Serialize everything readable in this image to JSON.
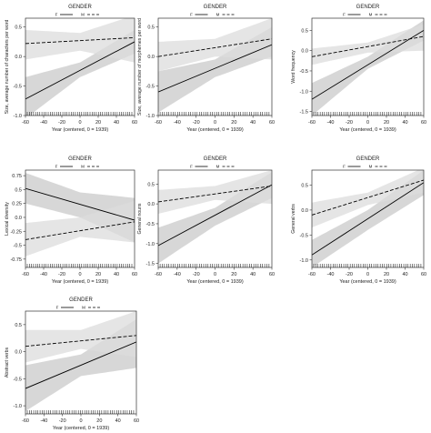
{
  "figure": {
    "legend_title": "GENDER",
    "legend_labels": [
      "F",
      "M"
    ],
    "xlabel": "Year (centered, 0 = 1939)"
  },
  "chart_data": [
    {
      "type": "line",
      "ylabel": "Size, average number of characters per word",
      "xlabel": "Year (centered, 0 = 1939)",
      "xlim": [
        -60,
        60
      ],
      "ylim": [
        -1.0,
        0.65
      ],
      "x_ticks": [
        -60,
        -40,
        -20,
        0,
        20,
        40,
        60
      ],
      "y_ticks": [
        -1.0,
        -0.5,
        0.0,
        0.5
      ],
      "series": [
        {
          "name": "F",
          "line": [
            [
              -60,
              -0.72
            ],
            [
              60,
              0.25
            ]
          ],
          "ci_low": [
            [
              -60,
              -1.05
            ],
            [
              0,
              -0.35
            ],
            [
              60,
              0.05
            ]
          ],
          "ci_high": [
            [
              -60,
              -0.35
            ],
            [
              0,
              -0.1
            ],
            [
              60,
              0.45
            ]
          ]
        },
        {
          "name": "M",
          "line": [
            [
              -60,
              0.22
            ],
            [
              60,
              0.32
            ]
          ],
          "ci_low": [
            [
              -60,
              -0.05
            ],
            [
              0,
              0.1
            ],
            [
              60,
              -0.1
            ]
          ],
          "ci_high": [
            [
              -60,
              0.45
            ],
            [
              0,
              0.4
            ],
            [
              60,
              0.7
            ]
          ]
        }
      ]
    },
    {
      "type": "line",
      "ylabel": "Size, average number of morphemes per word",
      "xlabel": "Year (centered, 0 = 1939)",
      "xlim": [
        -60,
        60
      ],
      "ylim": [
        -1.0,
        0.65
      ],
      "x_ticks": [
        -60,
        -40,
        -20,
        0,
        20,
        40,
        60
      ],
      "y_ticks": [
        -1.0,
        -0.5,
        0.0,
        0.5
      ],
      "series": [
        {
          "name": "F",
          "line": [
            [
              -60,
              -0.6
            ],
            [
              60,
              0.2
            ]
          ],
          "ci_low": [
            [
              -60,
              -0.95
            ],
            [
              0,
              -0.35
            ],
            [
              60,
              0.0
            ]
          ],
          "ci_high": [
            [
              -60,
              -0.25
            ],
            [
              0,
              -0.05
            ],
            [
              60,
              0.5
            ]
          ]
        },
        {
          "name": "M",
          "line": [
            [
              -60,
              0.0
            ],
            [
              60,
              0.3
            ]
          ],
          "ci_low": [
            [
              -60,
              -0.25
            ],
            [
              0,
              0.0
            ],
            [
              60,
              -0.05
            ]
          ],
          "ci_high": [
            [
              -60,
              0.25
            ],
            [
              0,
              0.3
            ],
            [
              60,
              0.65
            ]
          ]
        }
      ]
    },
    {
      "type": "line",
      "ylabel": "Word frequency",
      "xlabel": "Year (centered, 0 = 1939)",
      "xlim": [
        -60,
        60
      ],
      "ylim": [
        -1.6,
        0.8
      ],
      "x_ticks": [
        -60,
        -40,
        -20,
        0,
        20,
        40,
        60
      ],
      "y_ticks": [
        -1.5,
        -1.0,
        -0.5,
        0.0,
        0.5
      ],
      "series": [
        {
          "name": "F",
          "line": [
            [
              -60,
              -1.2
            ],
            [
              60,
              0.5
            ]
          ],
          "ci_low": [
            [
              -60,
              -1.6
            ],
            [
              0,
              -0.45
            ],
            [
              60,
              0.25
            ]
          ],
          "ci_high": [
            [
              -60,
              -0.8
            ],
            [
              0,
              -0.15
            ],
            [
              60,
              0.75
            ]
          ]
        },
        {
          "name": "M",
          "line": [
            [
              -60,
              -0.15
            ],
            [
              60,
              0.35
            ]
          ],
          "ci_low": [
            [
              -60,
              -0.35
            ],
            [
              0,
              -0.05
            ],
            [
              60,
              0.0
            ]
          ],
          "ci_high": [
            [
              -60,
              0.05
            ],
            [
              0,
              0.2
            ],
            [
              60,
              0.65
            ]
          ]
        }
      ]
    },
    {
      "type": "line",
      "ylabel": "Lexical diversity",
      "xlabel": "Year (centered, 0 = 1939)",
      "xlim": [
        -60,
        60
      ],
      "ylim": [
        -0.9,
        0.85
      ],
      "x_ticks": [
        -60,
        -40,
        -20,
        0,
        20,
        40,
        60
      ],
      "y_ticks": [
        -0.75,
        -0.5,
        -0.25,
        0.0,
        0.25,
        0.5,
        0.75
      ],
      "series": [
        {
          "name": "F",
          "line": [
            [
              -60,
              0.52
            ],
            [
              60,
              -0.05
            ]
          ],
          "ci_low": [
            [
              -60,
              0.25
            ],
            [
              0,
              0.0
            ],
            [
              60,
              -0.45
            ]
          ],
          "ci_high": [
            [
              -60,
              0.8
            ],
            [
              0,
              0.45
            ],
            [
              60,
              0.35
            ]
          ]
        },
        {
          "name": "M",
          "line": [
            [
              -60,
              -0.4
            ],
            [
              60,
              -0.08
            ]
          ],
          "ci_low": [
            [
              -60,
              -0.7
            ],
            [
              0,
              -0.35
            ],
            [
              60,
              -0.45
            ]
          ],
          "ci_high": [
            [
              -60,
              -0.1
            ],
            [
              0,
              0.0
            ],
            [
              60,
              0.3
            ]
          ]
        }
      ]
    },
    {
      "type": "line",
      "ylabel": "General nouns",
      "xlabel": "Year (centered, 0 = 1939)",
      "xlim": [
        -60,
        60
      ],
      "ylim": [
        -1.6,
        0.85
      ],
      "x_ticks": [
        -60,
        -40,
        -20,
        0,
        20,
        40,
        60
      ],
      "y_ticks": [
        -1.5,
        -1.0,
        -0.5,
        0.0,
        0.5
      ],
      "series": [
        {
          "name": "F",
          "line": [
            [
              -60,
              -1.05
            ],
            [
              60,
              0.48
            ]
          ],
          "ci_low": [
            [
              -60,
              -1.5
            ],
            [
              0,
              -0.55
            ],
            [
              60,
              0.15
            ]
          ],
          "ci_high": [
            [
              -60,
              -0.6
            ],
            [
              0,
              -0.1
            ],
            [
              60,
              0.8
            ]
          ]
        },
        {
          "name": "M",
          "line": [
            [
              -60,
              0.05
            ],
            [
              60,
              0.45
            ]
          ],
          "ci_low": [
            [
              -60,
              -0.25
            ],
            [
              0,
              0.1
            ],
            [
              60,
              0.0
            ]
          ],
          "ci_high": [
            [
              -60,
              0.35
            ],
            [
              0,
              0.45
            ],
            [
              60,
              0.85
            ]
          ]
        }
      ]
    },
    {
      "type": "line",
      "ylabel": "General verbs",
      "xlabel": "Year (centered, 0 = 1939)",
      "xlim": [
        -60,
        60
      ],
      "ylim": [
        -1.15,
        0.8
      ],
      "x_ticks": [
        -60,
        -40,
        -20,
        0,
        20,
        40,
        60
      ],
      "y_ticks": [
        -1.0,
        -0.5,
        0.0,
        0.5
      ],
      "series": [
        {
          "name": "F",
          "line": [
            [
              -60,
              -0.9
            ],
            [
              60,
              0.55
            ]
          ],
          "ci_low": [
            [
              -60,
              -1.15
            ],
            [
              0,
              -0.4
            ],
            [
              60,
              0.3
            ]
          ],
          "ci_high": [
            [
              -60,
              -0.6
            ],
            [
              0,
              0.0
            ],
            [
              60,
              0.8
            ]
          ]
        },
        {
          "name": "M",
          "line": [
            [
              -60,
              -0.1
            ],
            [
              60,
              0.6
            ]
          ],
          "ci_low": [
            [
              -60,
              -0.35
            ],
            [
              0,
              0.1
            ],
            [
              60,
              0.35
            ]
          ],
          "ci_high": [
            [
              -60,
              0.15
            ],
            [
              0,
              0.35
            ],
            [
              60,
              0.85
            ]
          ]
        }
      ]
    },
    {
      "type": "line",
      "ylabel": "Abstract verbs",
      "xlabel": "Year (centered, 0 = 1939)",
      "xlim": [
        -60,
        60
      ],
      "ylim": [
        -1.15,
        0.75
      ],
      "x_ticks": [
        -60,
        -40,
        -20,
        0,
        20,
        40,
        60
      ],
      "y_ticks": [
        -1.0,
        -0.5,
        0.0,
        0.5
      ],
      "series": [
        {
          "name": "F",
          "line": [
            [
              -60,
              -0.68
            ],
            [
              60,
              0.18
            ]
          ],
          "ci_low": [
            [
              -60,
              -1.1
            ],
            [
              0,
              -0.45
            ],
            [
              60,
              -0.3
            ]
          ],
          "ci_high": [
            [
              -60,
              -0.25
            ],
            [
              0,
              -0.05
            ],
            [
              60,
              0.6
            ]
          ]
        },
        {
          "name": "M",
          "line": [
            [
              -60,
              0.1
            ],
            [
              60,
              0.3
            ]
          ],
          "ci_low": [
            [
              -60,
              -0.2
            ],
            [
              0,
              0.05
            ],
            [
              60,
              -0.1
            ]
          ],
          "ci_high": [
            [
              -60,
              0.4
            ],
            [
              0,
              0.4
            ],
            [
              60,
              0.75
            ]
          ]
        }
      ]
    }
  ]
}
